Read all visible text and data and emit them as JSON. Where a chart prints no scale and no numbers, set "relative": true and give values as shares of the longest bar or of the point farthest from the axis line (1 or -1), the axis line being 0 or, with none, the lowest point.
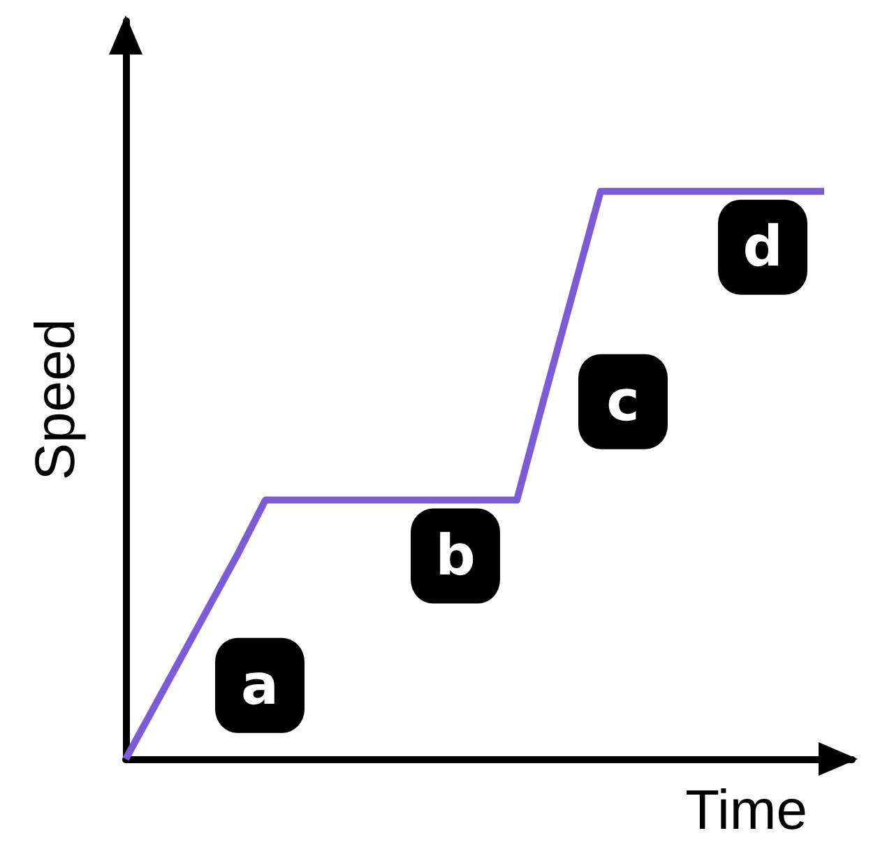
{
  "chart_data": {
    "type": "line",
    "relative": true,
    "xlabel": "Time",
    "ylabel": "Speed",
    "grid": false,
    "marker": "none",
    "line_style": "solid",
    "categories": [
      null,
      null,
      null,
      null,
      null,
      null,
      null,
      null,
      null,
      null,
      null,
      null,
      null,
      null,
      null,
      null,
      null,
      null,
      null,
      null,
      null,
      null,
      null,
      null,
      null,
      null
    ],
    "series": [
      {
        "color": "#7b5bd6",
        "values": [
          0,
          0.09,
          0.18,
          0.27,
          0.36,
          0.456,
          0.456,
          0.456,
          0.456,
          0.456,
          0.456,
          0.456,
          0.456,
          0.456,
          0.456,
          0.64,
          0.82,
          1,
          1,
          1,
          1,
          1,
          1,
          1,
          1,
          1
        ]
      }
    ],
    "annotations": [
      "a",
      "b",
      "c",
      "d"
    ]
  }
}
